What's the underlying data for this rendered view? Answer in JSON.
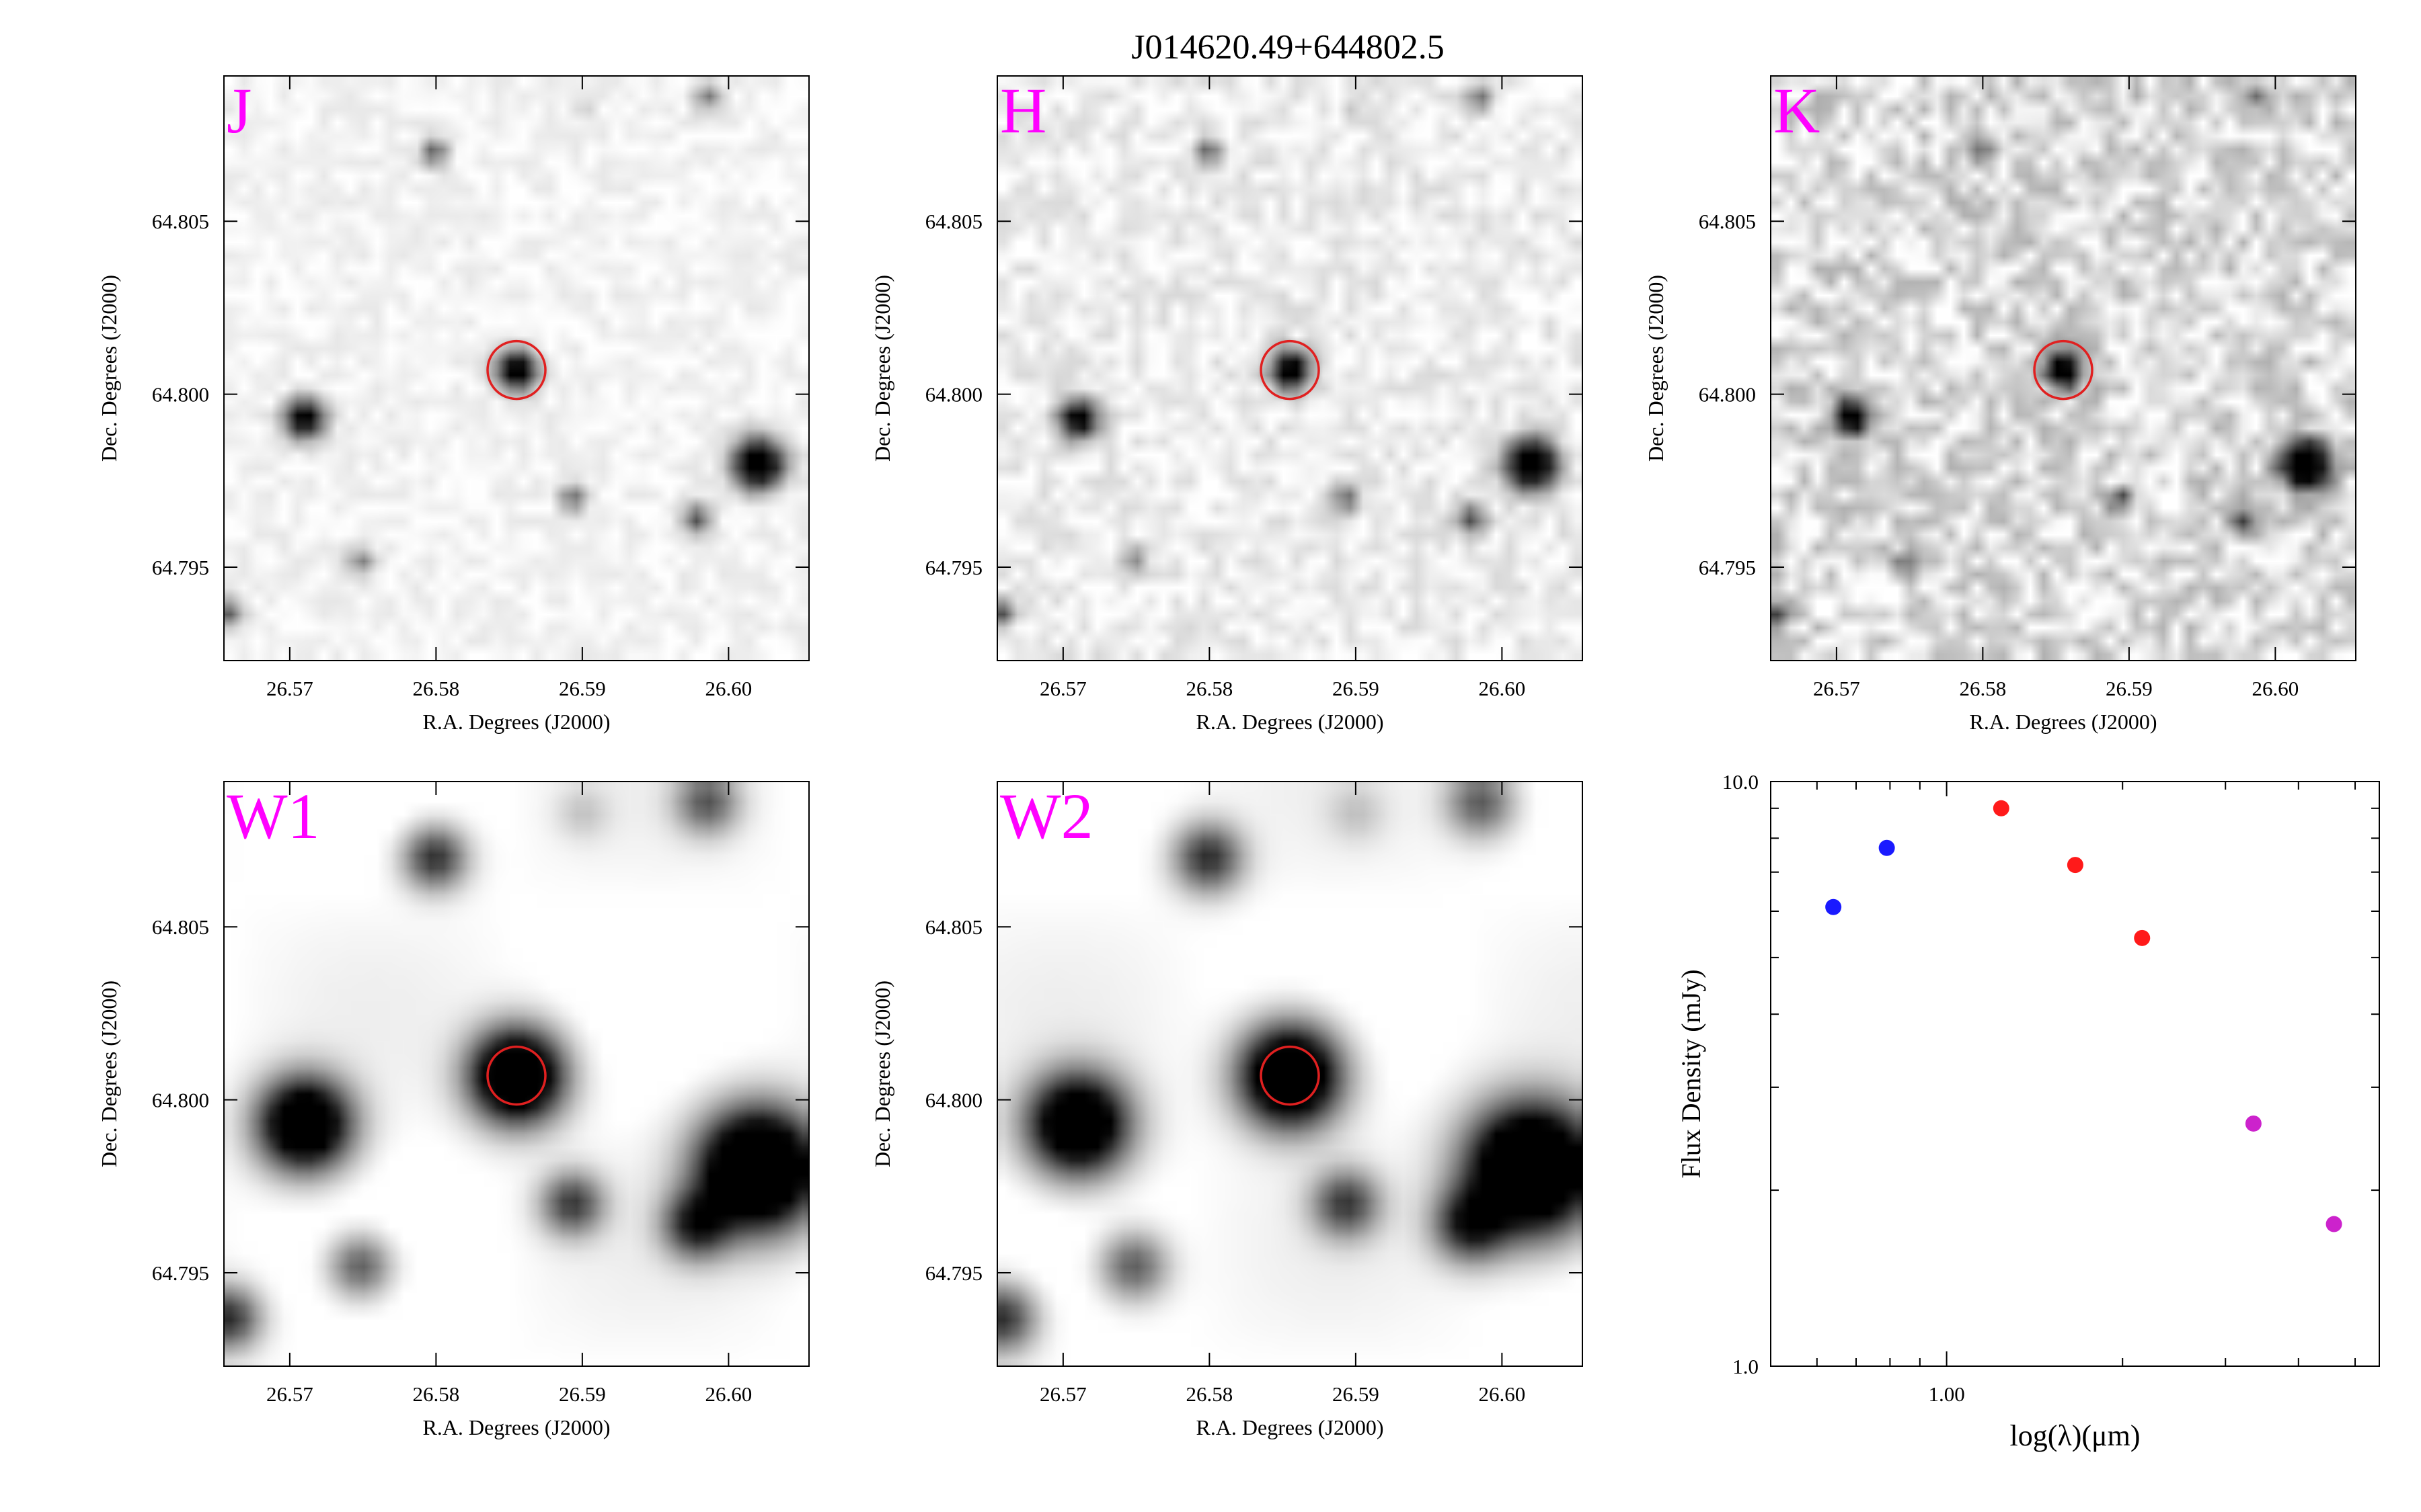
{
  "figure": {
    "title": "J014620.49+644802.5",
    "target_marker_color": "#e02020",
    "band_label_color": "#ff00ff"
  },
  "panels": [
    {
      "band": "J",
      "xlabel": "R.A. Degrees (J2000)",
      "ylabel": "Dec. Degrees (J2000)",
      "xticks": [
        "26.57",
        "26.58",
        "26.59",
        "26.60"
      ],
      "yticks": [
        "64.805",
        "64.800",
        "64.795"
      ],
      "noise": 0.04,
      "blur": 1.0
    },
    {
      "band": "H",
      "xlabel": "R.A. Degrees (J2000)",
      "ylabel": "Dec. Degrees (J2000)",
      "xticks": [
        "26.57",
        "26.58",
        "26.59",
        "26.60"
      ],
      "yticks": [
        "64.805",
        "64.800",
        "64.795"
      ],
      "noise": 0.07,
      "blur": 1.0
    },
    {
      "band": "K",
      "xlabel": "R.A. Degrees (J2000)",
      "ylabel": "Dec. Degrees (J2000)",
      "xticks": [
        "26.57",
        "26.58",
        "26.59",
        "26.60"
      ],
      "yticks": [
        "64.805",
        "64.800",
        "64.795"
      ],
      "noise": 0.16,
      "blur": 1.0
    },
    {
      "band": "W1",
      "xlabel": "R.A. Degrees (J2000)",
      "ylabel": "Dec. Degrees (J2000)",
      "xticks": [
        "26.57",
        "26.58",
        "26.59",
        "26.60"
      ],
      "yticks": [
        "64.805",
        "64.800",
        "64.795"
      ],
      "noise": 0.0,
      "blur": 2.4
    },
    {
      "band": "W2",
      "xlabel": "R.A. Degrees (J2000)",
      "ylabel": "Dec. Degrees (J2000)",
      "xticks": [
        "26.57",
        "26.58",
        "26.59",
        "26.60"
      ],
      "yticks": [
        "64.805",
        "64.800",
        "64.795"
      ],
      "noise": 0.0,
      "blur": 2.6
    }
  ],
  "chart_data": {
    "type": "scatter",
    "xlabel": "log(λ)(μm)",
    "ylabel": "Flux Density (mJy)",
    "x_scale": "log",
    "y_scale": "log",
    "xlim": [
      0.5,
      5.5
    ],
    "ylim": [
      1.0,
      10.0
    ],
    "ytick_labels": [
      "10.0",
      "1.0"
    ],
    "xtick_labels": [
      "1.00"
    ],
    "grid": false,
    "series": [
      {
        "color": "#1a1aff",
        "x": [
          0.64,
          0.79
        ],
        "y": [
          6.1,
          7.7
        ]
      },
      {
        "color": "#ff1a1a",
        "x": [
          1.24,
          1.66,
          2.16
        ],
        "y": [
          9.0,
          7.2,
          5.4
        ]
      },
      {
        "color": "#cc22cc",
        "x": [
          3.35,
          4.6
        ],
        "y": [
          2.6,
          1.75
        ]
      }
    ]
  }
}
